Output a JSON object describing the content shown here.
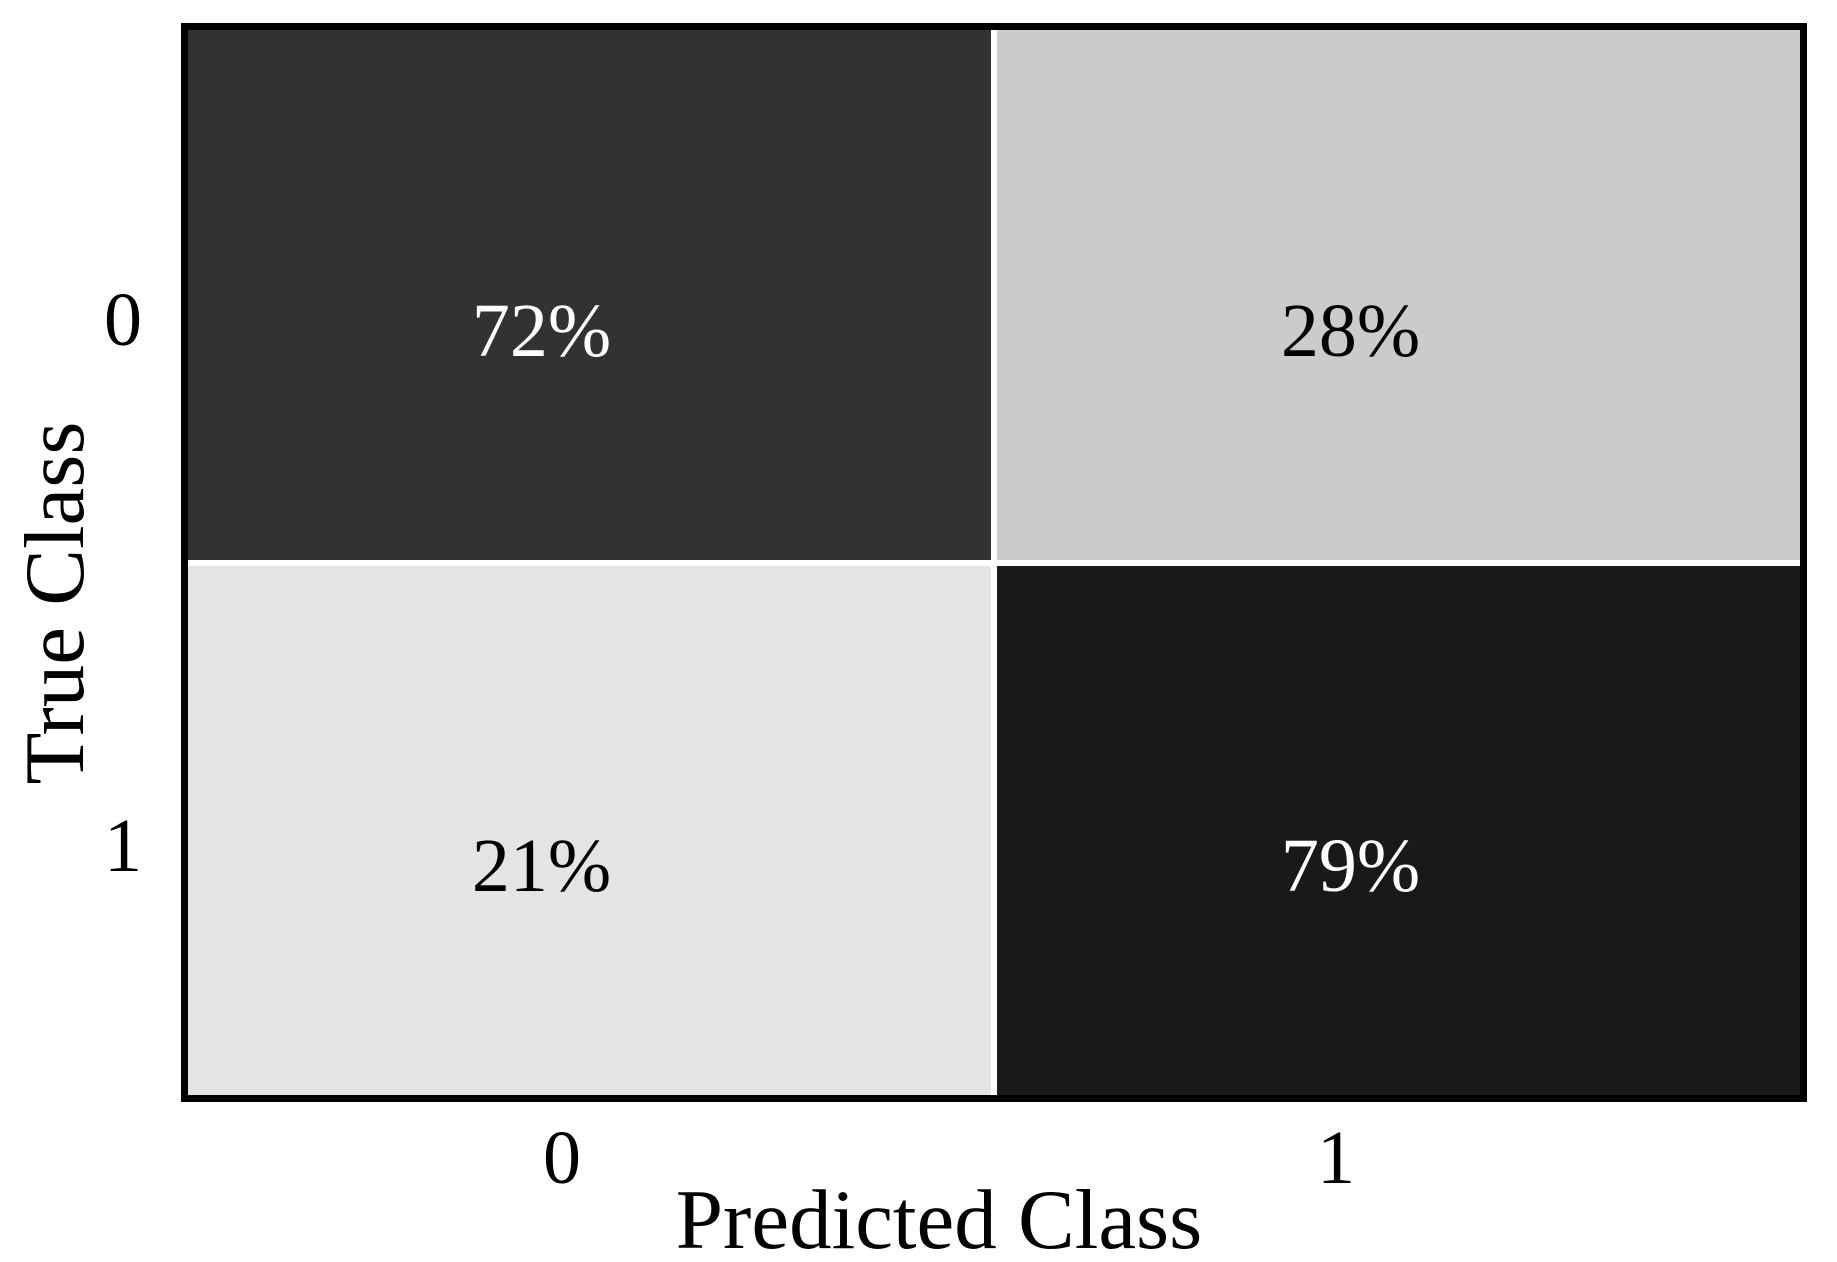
{
  "chart_data": {
    "type": "heatmap",
    "title": "",
    "xlabel": "Predicted Class",
    "ylabel": "True Class",
    "x_categories": [
      "0",
      "1"
    ],
    "y_categories": [
      "0",
      "1"
    ],
    "rows_meaning": "true class (top=0, bottom=1)",
    "cols_meaning": "predicted class (left=0, right=1)",
    "values_percent": [
      [
        72,
        28
      ],
      [
        21,
        79
      ]
    ],
    "cell_labels": [
      [
        "72%",
        "28%"
      ],
      [
        "21%",
        "79%"
      ]
    ],
    "cell_colors": [
      [
        "#323232",
        "#cbcbcb"
      ],
      [
        "#e4e4e4",
        "#191919"
      ]
    ],
    "cell_text_colors": [
      [
        "#ffffff",
        "#000000"
      ],
      [
        "#000000",
        "#ffffff"
      ]
    ],
    "colors": {
      "axes_border": "#000000",
      "cell_gap": "#ffffff",
      "background": "#ffffff",
      "label_text": "#000000"
    },
    "legend": "none",
    "grid": "off"
  }
}
